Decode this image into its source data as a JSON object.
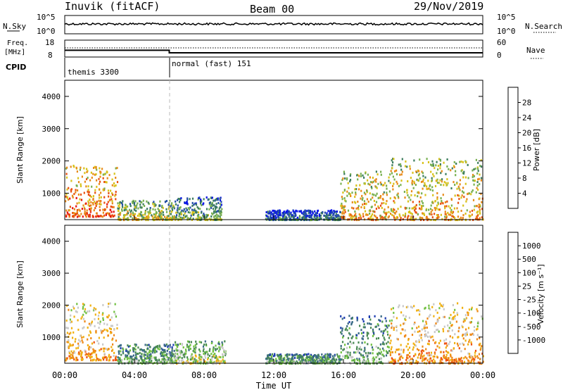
{
  "header": {
    "station": "Inuvik (fitACF)",
    "beam": "Beam 00",
    "date": "29/Nov/2019"
  },
  "status_panel": {
    "nsky_label": "N.Sky",
    "nsky_ticks": [
      "10^5",
      "10^0"
    ],
    "nsearch_label": "N.Search",
    "freq_label_1": "Freq.",
    "freq_label_2": "[MHz]",
    "freq_ticks": [
      "18",
      "8"
    ],
    "nave_ticks": [
      "60",
      "0"
    ],
    "nave_label": "Nave",
    "cpid_label": "CPID",
    "programs": [
      {
        "name": "themis 3300",
        "start_hour": 0,
        "end_hour": 6
      },
      {
        "name": "normal (fast) 151",
        "start_hour": 6,
        "end_hour": 24
      }
    ],
    "freq_mhz": [
      {
        "start_hour": 0,
        "end_hour": 6,
        "value": 12
      },
      {
        "start_hour": 6,
        "end_hour": 24,
        "value": 10.5
      }
    ]
  },
  "x_axis": {
    "label": "Time UT",
    "ticks": [
      "00:00",
      "04:00",
      "08:00",
      "12:00",
      "16:00",
      "20:00",
      "00:00"
    ],
    "range_hours": [
      0,
      24
    ]
  },
  "chart_data": [
    {
      "type": "heatmap",
      "panel": "power",
      "ylabel": "Slant Range [km]",
      "yticks": [
        1000,
        2000,
        3000,
        4000
      ],
      "ylim": [
        180,
        4500
      ],
      "colorbar_label": "Power [dB]",
      "colorbar_ticks": [
        "4",
        "8",
        "12",
        "16",
        "20",
        "24",
        "28"
      ],
      "colorbar_colors": [
        "#0a14e8",
        "#244ea8",
        "#3d7d5e",
        "#78b050",
        "#d8c21a",
        "#e88a18",
        "#e85010",
        "#e81010"
      ],
      "echo_regions": [
        {
          "t0": 0.0,
          "t1": 3.0,
          "r0": 300,
          "r1": 1900,
          "level": 6
        },
        {
          "t0": 3.0,
          "t1": 6.3,
          "r0": 200,
          "r1": 800,
          "level": 4
        },
        {
          "t0": 6.3,
          "t1": 9.0,
          "r0": 200,
          "r1": 900,
          "level": 3
        },
        {
          "t0": 11.5,
          "t1": 15.8,
          "r0": 200,
          "r1": 500,
          "level": 2
        },
        {
          "t0": 15.8,
          "t1": 18.6,
          "r0": 200,
          "r1": 1700,
          "level": 5
        },
        {
          "t0": 18.6,
          "t1": 24.0,
          "r0": 200,
          "r1": 2100,
          "level": 5
        }
      ]
    },
    {
      "type": "heatmap",
      "panel": "velocity",
      "ylabel": "Slant Range [km]",
      "yticks": [
        1000,
        2000,
        3000,
        4000
      ],
      "ylim": [
        180,
        4500
      ],
      "colorbar_label": "Velocity [m s⁻¹]",
      "colorbar_ticks": [
        "1000",
        "500",
        "100",
        "25",
        "-25",
        "-100",
        "-500",
        "-1000"
      ],
      "colorbar_colors": [
        "#1a3ab0",
        "#3a6a86",
        "#4a8a54",
        "#70c040",
        "#c8c8c8",
        "#f0b010",
        "#ee8818",
        "#ee5010",
        "#e81010"
      ],
      "echo_regions": [
        {
          "t0": 0.0,
          "t1": 3.0,
          "r0": 300,
          "r1": 2100,
          "level": 6
        },
        {
          "t0": 3.0,
          "t1": 6.3,
          "r0": 200,
          "r1": 800,
          "level": 3
        },
        {
          "t0": 6.3,
          "t1": 9.2,
          "r0": 200,
          "r1": 900,
          "level": 4
        },
        {
          "t0": 11.5,
          "t1": 15.8,
          "r0": 200,
          "r1": 500,
          "level": 3
        },
        {
          "t0": 15.8,
          "t1": 18.6,
          "r0": 200,
          "r1": 1700,
          "level": 3
        },
        {
          "t0": 18.6,
          "t1": 24.0,
          "r0": 200,
          "r1": 2100,
          "level": 6
        }
      ]
    }
  ]
}
